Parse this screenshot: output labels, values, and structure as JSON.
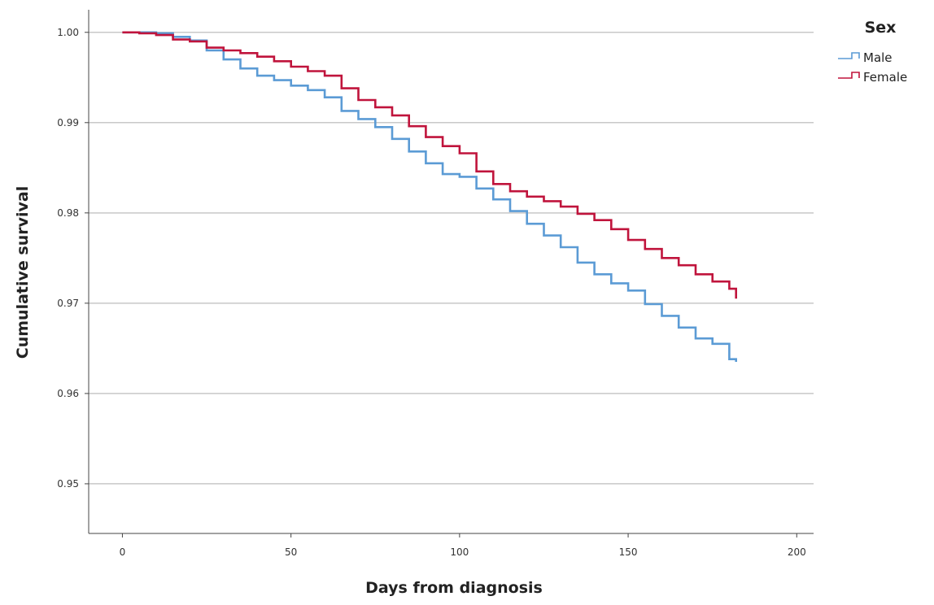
{
  "chart_data": {
    "type": "line",
    "step": true,
    "xlabel": "Days from diagnosis",
    "ylabel": "Cumulative survival",
    "xlim": [
      -10,
      205
    ],
    "ylim": [
      0.9445,
      1.0025
    ],
    "x_ticks": [
      0,
      50,
      100,
      150,
      200
    ],
    "x_tick_labels": [
      "0",
      "50",
      "100",
      "150",
      "200"
    ],
    "y_ticks": [
      0.95,
      0.96,
      0.97,
      0.98,
      0.99,
      1.0
    ],
    "y_tick_labels": [
      "0.95",
      "0.96",
      "0.97",
      "0.98",
      "0.99",
      "1.00"
    ],
    "grid": "horizontal",
    "legend": {
      "title": "Sex",
      "position": "top-right"
    },
    "series": [
      {
        "name": "Male",
        "color": "#5b9bd5",
        "x": [
          0,
          5,
          10,
          15,
          20,
          25,
          30,
          35,
          40,
          45,
          50,
          55,
          60,
          65,
          70,
          75,
          80,
          85,
          90,
          95,
          100,
          105,
          110,
          115,
          120,
          125,
          130,
          135,
          140,
          145,
          150,
          155,
          160,
          165,
          170,
          175,
          180,
          182
        ],
        "y": [
          1.0,
          1.0,
          0.9999,
          0.9995,
          0.9991,
          0.998,
          0.997,
          0.996,
          0.9952,
          0.9947,
          0.9941,
          0.9936,
          0.9928,
          0.9913,
          0.9904,
          0.9895,
          0.9882,
          0.9868,
          0.9855,
          0.9843,
          0.984,
          0.9827,
          0.9815,
          0.9802,
          0.9788,
          0.9775,
          0.9762,
          0.9745,
          0.9732,
          0.9722,
          0.9714,
          0.9699,
          0.9686,
          0.9673,
          0.9661,
          0.9655,
          0.9638,
          0.9635
        ]
      },
      {
        "name": "Female",
        "color": "#c0143c",
        "x": [
          0,
          5,
          10,
          15,
          20,
          25,
          30,
          35,
          40,
          45,
          50,
          55,
          60,
          65,
          70,
          75,
          80,
          85,
          90,
          95,
          100,
          105,
          110,
          115,
          120,
          125,
          130,
          135,
          140,
          145,
          150,
          155,
          160,
          165,
          170,
          175,
          180,
          182
        ],
        "y": [
          1.0,
          0.9999,
          0.9997,
          0.9992,
          0.999,
          0.9983,
          0.998,
          0.9977,
          0.9973,
          0.9968,
          0.9962,
          0.9957,
          0.9952,
          0.9938,
          0.9925,
          0.9917,
          0.9908,
          0.9896,
          0.9884,
          0.9874,
          0.9866,
          0.9846,
          0.9832,
          0.9824,
          0.9818,
          0.9813,
          0.9807,
          0.9799,
          0.9792,
          0.9782,
          0.977,
          0.976,
          0.975,
          0.9742,
          0.9732,
          0.9724,
          0.9716,
          0.9705
        ]
      }
    ]
  }
}
